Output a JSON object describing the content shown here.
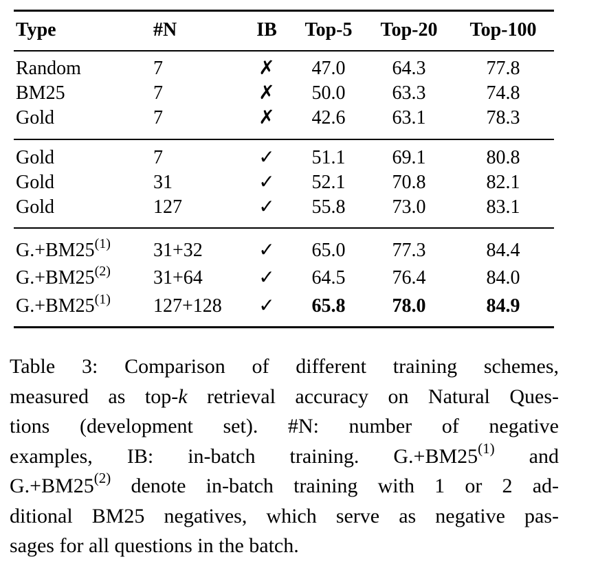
{
  "table": {
    "headers": {
      "type": "Type",
      "n": "#N",
      "ib": "IB",
      "top5": "Top-5",
      "top20": "Top-20",
      "top100": "Top-100"
    },
    "groups": [
      [
        {
          "type": "Random",
          "type_sup": "",
          "n": "7",
          "ib": "✗",
          "top5": "47.0",
          "top20": "64.3",
          "top100": "77.8"
        },
        {
          "type": "BM25",
          "type_sup": "",
          "n": "7",
          "ib": "✗",
          "top5": "50.0",
          "top20": "63.3",
          "top100": "74.8"
        },
        {
          "type": "Gold",
          "type_sup": "",
          "n": "7",
          "ib": "✗",
          "top5": "42.6",
          "top20": "63.1",
          "top100": "78.3"
        }
      ],
      [
        {
          "type": "Gold",
          "type_sup": "",
          "n": "7",
          "ib": "✓",
          "top5": "51.1",
          "top20": "69.1",
          "top100": "80.8"
        },
        {
          "type": "Gold",
          "type_sup": "",
          "n": "31",
          "ib": "✓",
          "top5": "52.1",
          "top20": "70.8",
          "top100": "82.1"
        },
        {
          "type": "Gold",
          "type_sup": "",
          "n": "127",
          "ib": "✓",
          "top5": "55.8",
          "top20": "73.0",
          "top100": "83.1"
        }
      ],
      [
        {
          "type": "G.+BM25",
          "type_sup": "(1)",
          "n": "31+32",
          "ib": "✓",
          "top5": "65.0",
          "top20": "77.3",
          "top100": "84.4"
        },
        {
          "type": "G.+BM25",
          "type_sup": "(2)",
          "n": "31+64",
          "ib": "✓",
          "top5": "64.5",
          "top20": "76.4",
          "top100": "84.0"
        },
        {
          "type": "G.+BM25",
          "type_sup": "(1)",
          "n": "127+128",
          "ib": "✓",
          "top5": "65.8",
          "top20": "78.0",
          "top100": "84.9"
        }
      ]
    ]
  },
  "caption": {
    "l1": "Table 3:  Comparison of different training schemes,",
    "l2a": "measured as top-",
    "l2k": "k",
    "l2b": " retrieval accuracy on Natural Ques-",
    "l3": "tions (development set).   #N: number of negative",
    "l4a": "examples, IB: in-batch training.   G.+BM25",
    "l4sup": "(1)",
    "l4b": " and",
    "l5a": "G.+BM25",
    "l5sup": "(2)",
    "l5b": " denote in-batch training with 1 or 2 ad-",
    "l6": "ditional BM25 negatives, which serve as negative pas-",
    "l7": "sages for all questions in the batch."
  }
}
